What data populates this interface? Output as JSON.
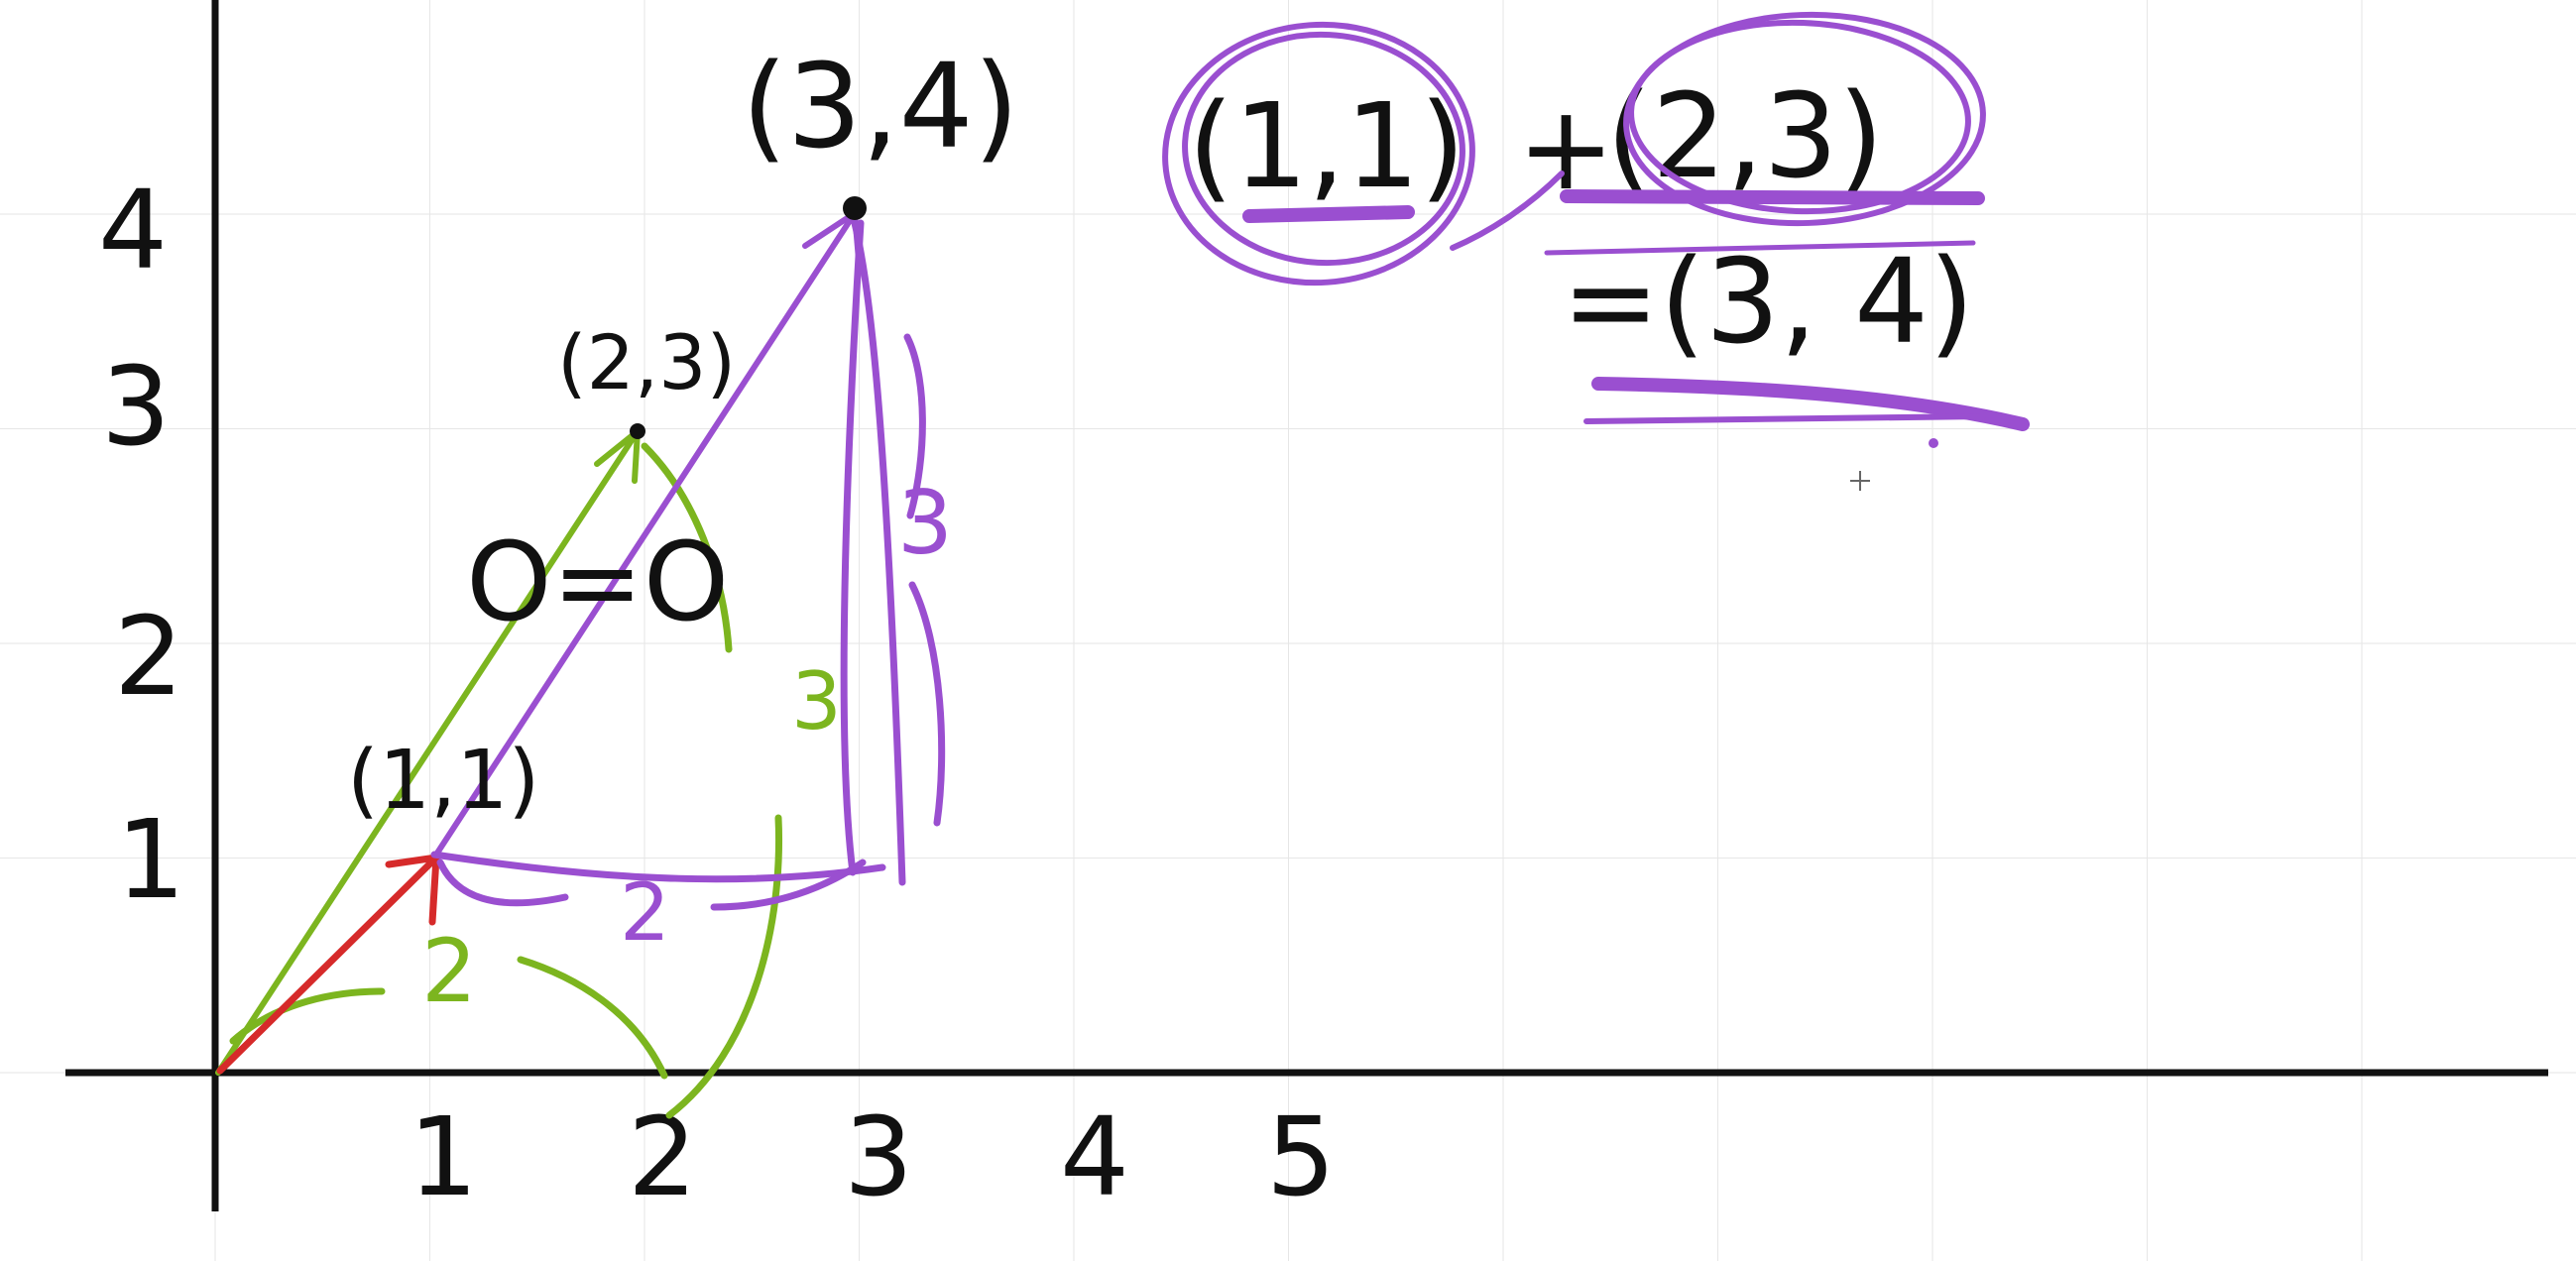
{
  "colors": {
    "background": "#ffffff",
    "grid": "#e6e6e6",
    "axis_ink": "#111111",
    "red_vector": "#d62a2a",
    "green_vector": "#7cb51f",
    "purple_vector": "#9a4fd0"
  },
  "axes": {
    "x_ticks": [
      "1",
      "2",
      "3",
      "4",
      "5"
    ],
    "y_ticks": [
      "1",
      "2",
      "3",
      "4"
    ]
  },
  "points": {
    "p11": "(1,1)",
    "p23": "(2,3)",
    "p34": "(3,4)"
  },
  "vectors": [
    {
      "name": "red",
      "from": [
        0,
        0
      ],
      "to": [
        1,
        1
      ]
    },
    {
      "name": "green",
      "from": [
        0,
        0
      ],
      "to": [
        2,
        3
      ]
    },
    {
      "name": "purple-resultant",
      "from": [
        1,
        1
      ],
      "to": [
        3,
        4
      ]
    }
  ],
  "annotations": {
    "green_run": "2",
    "green_rise": "3",
    "purple_run": "2",
    "purple_rise": "3",
    "angle_equal": "O=O"
  },
  "equation": {
    "left": "(1,1)",
    "plus": "+",
    "right": "(2,3)",
    "result": "=(3, 4)"
  },
  "cursor": {
    "icon": "crosshair-cursor-icon"
  }
}
